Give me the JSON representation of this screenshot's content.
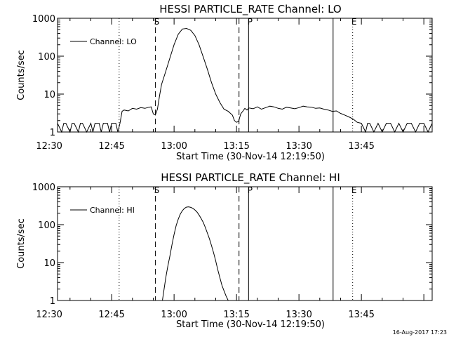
{
  "footer": {
    "timestamp": "16-Aug-2017 17:23"
  },
  "chart_data": [
    {
      "type": "line",
      "title": "HESSI PARTICLE_RATE Channel: LO",
      "xlabel": "Start Time (30-Nov-14 12:19:50)",
      "ylabel": "Counts/sec",
      "yscale": "log",
      "ylim": [
        1,
        1000
      ],
      "xlim_minutes": [
        12.0,
        102.0
      ],
      "x_ticks_minutes": [
        10,
        25,
        40,
        55,
        70,
        85
      ],
      "x_tick_labels": [
        "12:30",
        "12:45",
        "13:00",
        "13:15",
        "13:30",
        "13:45"
      ],
      "y_ticks": [
        1,
        10,
        100,
        1000
      ],
      "y_tick_labels": [
        "1",
        "10",
        "100",
        "1000"
      ],
      "legend": "Channel: LO",
      "markers": [
        {
          "label": "S",
          "minute": 35.5,
          "style": "dashed"
        },
        {
          "label": "",
          "minute": 55.6,
          "style": "dashed"
        },
        {
          "label": "P",
          "minute": 57.9,
          "style": "solid"
        },
        {
          "label": "",
          "minute": 78.2,
          "style": "solid"
        },
        {
          "label": "E",
          "minute": 82.9,
          "style": "dotted"
        },
        {
          "label": "",
          "minute": 26.8,
          "style": "dotted"
        },
        {
          "label": "",
          "minute": 102.0,
          "style": "dotted"
        }
      ],
      "series": [
        {
          "name": "LO",
          "x": [
            12,
            13,
            13.5,
            14,
            15,
            15.5,
            16,
            17,
            17.5,
            18,
            19,
            20,
            20.5,
            21,
            22,
            22.5,
            23,
            24,
            24.5,
            25,
            26,
            26.5,
            27,
            27.5,
            28,
            29,
            30,
            31,
            32,
            33,
            34,
            34.5,
            35,
            35.5,
            36,
            36.5,
            37,
            38,
            39,
            40,
            41,
            42,
            43,
            44,
            45,
            46,
            47,
            48,
            49,
            50,
            51,
            52,
            53,
            54,
            54.5,
            55,
            55.5,
            56,
            56.5,
            57,
            57.5,
            58,
            59,
            60,
            61,
            62,
            63,
            64,
            65,
            66,
            67,
            68,
            69,
            70,
            71,
            72,
            73,
            74,
            75,
            76,
            77,
            78,
            79,
            80,
            81,
            82,
            83,
            84,
            85,
            86,
            86.5,
            87,
            88,
            89,
            90,
            91,
            92,
            93,
            94,
            95,
            96,
            97,
            98,
            99,
            100,
            101,
            102
          ],
          "y": [
            1.7,
            1,
            1.7,
            1.7,
            1,
            1.7,
            1.7,
            1,
            1.7,
            1.7,
            1,
            1.7,
            1,
            1.7,
            1.7,
            1,
            1.7,
            1.7,
            1,
            1.7,
            1.7,
            1,
            1.7,
            3.5,
            3.8,
            3.6,
            4.2,
            4,
            4.4,
            4.2,
            4.5,
            4.6,
            3.0,
            2.8,
            4.0,
            9,
            18,
            40,
            90,
            200,
            380,
            520,
            540,
            480,
            350,
            200,
            95,
            45,
            20,
            10,
            6,
            4,
            3.5,
            2.8,
            2.0,
            1.8,
            1.9,
            3.0,
            3.5,
            4.2,
            3.8,
            4.3,
            4.1,
            4.6,
            4.0,
            4.4,
            4.8,
            4.6,
            4.2,
            4.0,
            4.5,
            4.3,
            4.1,
            4.4,
            4.8,
            4.6,
            4.5,
            4.2,
            4.3,
            4.0,
            3.8,
            3.5,
            3.6,
            3.1,
            2.8,
            2.5,
            2.2,
            1.8,
            1.7,
            1,
            1.7,
            1.7,
            1,
            1.7,
            1,
            1.7,
            1.7,
            1,
            1.7,
            1,
            1.7,
            1.7,
            1,
            1.7,
            1.7,
            1,
            1.7
          ]
        }
      ]
    },
    {
      "type": "line",
      "title": "HESSI PARTICLE_RATE Channel: HI",
      "xlabel": "Start Time (30-Nov-14 12:19:50)",
      "ylabel": "Counts/sec",
      "yscale": "log",
      "ylim": [
        1,
        1000
      ],
      "xlim_minutes": [
        12.0,
        102.0
      ],
      "x_ticks_minutes": [
        10,
        25,
        40,
        55,
        70,
        85
      ],
      "x_tick_labels": [
        "12:30",
        "12:45",
        "13:00",
        "13:15",
        "13:30",
        "13:45"
      ],
      "y_ticks": [
        1,
        10,
        100,
        1000
      ],
      "y_tick_labels": [
        "1",
        "10",
        "100",
        "1000"
      ],
      "legend": "Channel: HI",
      "markers": [
        {
          "label": "S",
          "minute": 35.5,
          "style": "dashed"
        },
        {
          "label": "",
          "minute": 55.6,
          "style": "dashed"
        },
        {
          "label": "P",
          "minute": 57.9,
          "style": "solid"
        },
        {
          "label": "",
          "minute": 78.2,
          "style": "solid"
        },
        {
          "label": "E",
          "minute": 82.9,
          "style": "dotted"
        },
        {
          "label": "",
          "minute": 26.8,
          "style": "dotted"
        },
        {
          "label": "",
          "minute": 102.0,
          "style": "dotted"
        }
      ],
      "series": [
        {
          "name": "HI",
          "x": [
            37.2,
            37.6,
            38,
            38.5,
            39,
            39.5,
            40,
            40.5,
            41,
            41.5,
            42,
            42.5,
            43,
            43.5,
            44,
            44.5,
            45,
            45.5,
            46,
            46.5,
            47,
            47.5,
            48,
            48.5,
            49,
            49.5,
            50,
            50.5,
            51,
            51.5,
            52,
            52.5,
            53
          ],
          "y": [
            1,
            2,
            4,
            8,
            15,
            30,
            55,
            95,
            140,
            190,
            235,
            270,
            290,
            295,
            285,
            270,
            245,
            215,
            180,
            145,
            115,
            85,
            60,
            42,
            28,
            18,
            11,
            6.5,
            4,
            2.5,
            1.8,
            1.3,
            1
          ]
        }
      ]
    }
  ]
}
